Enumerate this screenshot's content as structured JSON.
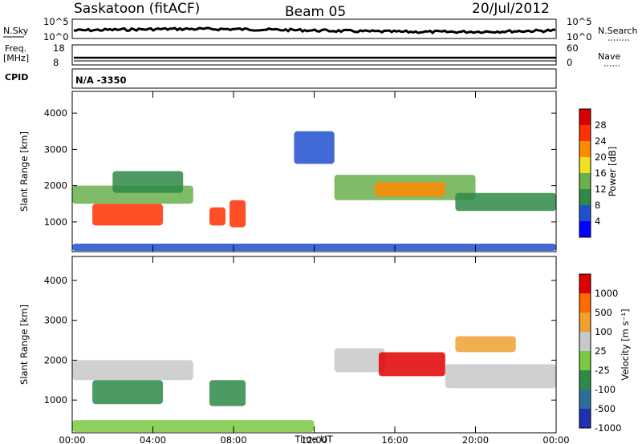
{
  "header": {
    "title": "Saskatoon (fitACF)",
    "beam": "Beam 05",
    "date": "20/Jul/2012"
  },
  "top_panels": {
    "nsky_label": "N.Sky",
    "nsky_ticks": [
      "10^5",
      "10^0"
    ],
    "nsearch_label": "N.Search",
    "nsearch_ticks": [
      "10^5",
      "10^0"
    ],
    "freq_label": "Freq.",
    "freq_unit": "[MHz]",
    "freq_ticks": [
      "18",
      "8"
    ],
    "nave_label": "Nave",
    "nave_ticks": [
      "60",
      "0"
    ],
    "cpid_label": "CPID",
    "cpid_value": "N/A -3350"
  },
  "chart_data": [
    {
      "type": "heatmap",
      "name": "power",
      "xlabel": "Time UT",
      "ylabel": "Slant Range [km]",
      "x_ticks": [
        "00:00",
        "04:00",
        "08:00",
        "12:00",
        "16:00",
        "20:00",
        "00:00"
      ],
      "xlim": [
        0,
        24
      ],
      "y_ticks": [
        "1000",
        "2000",
        "3000",
        "4000"
      ],
      "ylim": [
        180,
        4600
      ],
      "colorbar_label": "Power [dB]",
      "colorbar_ticks": [
        "28",
        "24",
        "20",
        "16",
        "12",
        "8",
        "4"
      ],
      "colorbar_colors": [
        "#0000ff",
        "#2050d0",
        "#2e8a46",
        "#6ab04c",
        "#f0e020",
        "#ff8a00",
        "#ff3000",
        "#d80000"
      ],
      "echo_bands": [
        {
          "x0": 0.0,
          "x1": 6.0,
          "y0": 1500,
          "y1": 2000,
          "level": 3
        },
        {
          "x0": 1.0,
          "x1": 4.5,
          "y0": 900,
          "y1": 1500,
          "level": 6
        },
        {
          "x0": 2.0,
          "x1": 5.5,
          "y0": 1800,
          "y1": 2400,
          "level": 2
        },
        {
          "x0": 6.8,
          "x1": 7.6,
          "y0": 900,
          "y1": 1400,
          "level": 6
        },
        {
          "x0": 7.8,
          "x1": 8.6,
          "y0": 850,
          "y1": 1600,
          "level": 6
        },
        {
          "x0": 13.0,
          "x1": 20.0,
          "y0": 1600,
          "y1": 2300,
          "level": 3
        },
        {
          "x0": 15.0,
          "x1": 18.5,
          "y0": 1700,
          "y1": 2100,
          "level": 5
        },
        {
          "x0": 19.0,
          "x1": 24.0,
          "y0": 1300,
          "y1": 1800,
          "level": 2
        },
        {
          "x0": 0.0,
          "x1": 24.0,
          "y0": 200,
          "y1": 400,
          "level": 1
        },
        {
          "x0": 11.0,
          "x1": 13.0,
          "y0": 2600,
          "y1": 3500,
          "level": 1
        }
      ]
    },
    {
      "type": "heatmap",
      "name": "velocity",
      "xlabel": "Time UT",
      "ylabel": "Slant Range [km]",
      "x_ticks": [
        "00:00",
        "04:00",
        "08:00",
        "12:00",
        "16:00",
        "20:00",
        "00:00"
      ],
      "xlim": [
        0,
        24
      ],
      "y_ticks": [
        "1000",
        "2000",
        "3000",
        "4000"
      ],
      "ylim": [
        180,
        4600
      ],
      "colorbar_label": "Velocity [m s⁻¹]",
      "colorbar_ticks": [
        "1000",
        "500",
        "100",
        "25",
        "-25",
        "-100",
        "-500",
        "-1000"
      ],
      "colorbar_colors": [
        "#2030b0",
        "#2e6e9e",
        "#2e8a46",
        "#7ac943",
        "#c8c8c8",
        "#f0a030",
        "#ff6a00",
        "#e00000"
      ],
      "echo_bands": [
        {
          "x0": 0.0,
          "x1": 6.0,
          "y0": 1500,
          "y1": 2000,
          "level": 4
        },
        {
          "x0": 1.0,
          "x1": 4.5,
          "y0": 900,
          "y1": 1500,
          "level": 2
        },
        {
          "x0": 6.8,
          "x1": 8.6,
          "y0": 850,
          "y1": 1500,
          "level": 2
        },
        {
          "x0": 13.0,
          "x1": 15.5,
          "y0": 1700,
          "y1": 2300,
          "level": 4
        },
        {
          "x0": 15.2,
          "x1": 18.5,
          "y0": 1600,
          "y1": 2200,
          "level": 7
        },
        {
          "x0": 18.5,
          "x1": 24.0,
          "y0": 1300,
          "y1": 1900,
          "level": 4
        },
        {
          "x0": 0.0,
          "x1": 12.0,
          "y0": 200,
          "y1": 500,
          "level": 3
        },
        {
          "x0": 19.0,
          "x1": 22.0,
          "y0": 2200,
          "y1": 2600,
          "level": 5
        }
      ]
    }
  ]
}
